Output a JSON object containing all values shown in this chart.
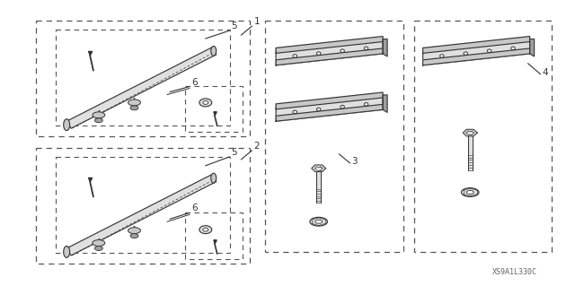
{
  "part_code": "XS9A1L330C",
  "bg": "#ffffff",
  "lc": "#333333",
  "dc": "#555555",
  "gray1": "#c8c8c8",
  "gray2": "#e0e0e0",
  "gray3": "#a0a0a0"
}
